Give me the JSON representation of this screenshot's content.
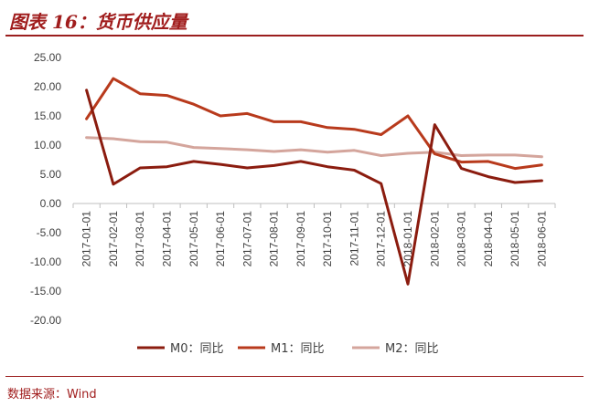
{
  "title": "图表 16：货币供应量",
  "source": "数据来源：Wind",
  "chart_data": {
    "type": "line",
    "categories": [
      "2017-01-01",
      "2017-02-01",
      "2017-03-01",
      "2017-04-01",
      "2017-05-01",
      "2017-06-01",
      "2017-07-01",
      "2017-08-01",
      "2017-09-01",
      "2017-10-01",
      "2017-11-01",
      "2017-12-01",
      "2018-01-01",
      "2018-02-01",
      "2018-03-01",
      "2018-04-01",
      "2018-05-01",
      "2018-06-01"
    ],
    "series": [
      {
        "name": "M0：同比",
        "color": "#8b1c0f",
        "values": [
          19.4,
          3.3,
          6.1,
          6.3,
          7.2,
          6.7,
          6.1,
          6.5,
          7.2,
          6.3,
          5.7,
          3.4,
          -13.8,
          13.5,
          6.0,
          4.6,
          3.6,
          3.9
        ]
      },
      {
        "name": "M1：同比",
        "color": "#b83a1c",
        "values": [
          14.5,
          21.4,
          18.8,
          18.5,
          17.0,
          15.0,
          15.4,
          14.0,
          14.0,
          13.0,
          12.7,
          11.8,
          15.0,
          8.5,
          7.1,
          7.2,
          6.0,
          6.6
        ]
      },
      {
        "name": "M2：同比",
        "color": "#d4a59c",
        "values": [
          11.3,
          11.1,
          10.6,
          10.5,
          9.6,
          9.4,
          9.2,
          8.9,
          9.2,
          8.8,
          9.1,
          8.2,
          8.6,
          8.8,
          8.2,
          8.3,
          8.3,
          8.0
        ]
      }
    ],
    "y_ticks": [
      "25.00",
      "20.00",
      "15.00",
      "10.00",
      "5.00",
      "0.00",
      "-5.00",
      "-10.00",
      "-15.00",
      "-20.00"
    ],
    "ylim": [
      -20,
      25
    ],
    "grid": false,
    "legend_position": "bottom"
  }
}
